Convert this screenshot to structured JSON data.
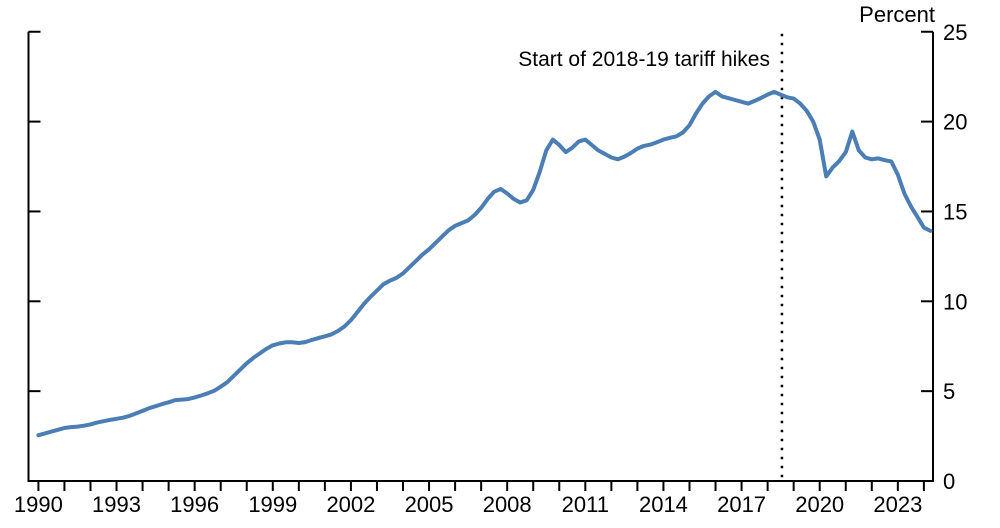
{
  "chart_data": {
    "type": "line",
    "title": "",
    "ylabel": "Percent",
    "annotation": "Start of 2018-19 tariff hikes",
    "line_color": "#4a7eb5",
    "axis_color": "#000000",
    "grid": false,
    "legend": "none",
    "xlim": [
      1989.62,
      2024.35
    ],
    "ylim": [
      0,
      25
    ],
    "x_start": 1990.0,
    "x_step": 0.25,
    "values": [
      2.55,
      2.65,
      2.75,
      2.85,
      2.95,
      3.0,
      3.03,
      3.08,
      3.15,
      3.25,
      3.33,
      3.4,
      3.46,
      3.52,
      3.62,
      3.76,
      3.9,
      4.05,
      4.16,
      4.28,
      4.38,
      4.5,
      4.53,
      4.56,
      4.65,
      4.76,
      4.88,
      5.02,
      5.25,
      5.5,
      5.85,
      6.2,
      6.55,
      6.85,
      7.1,
      7.35,
      7.55,
      7.65,
      7.72,
      7.72,
      7.68,
      7.73,
      7.85,
      7.95,
      8.05,
      8.16,
      8.35,
      8.6,
      8.95,
      9.4,
      9.85,
      10.25,
      10.6,
      10.95,
      11.15,
      11.3,
      11.55,
      11.9,
      12.25,
      12.6,
      12.9,
      13.25,
      13.6,
      13.95,
      14.2,
      14.35,
      14.5,
      14.8,
      15.2,
      15.7,
      16.1,
      16.25,
      16.0,
      15.7,
      15.5,
      15.62,
      16.2,
      17.2,
      18.4,
      19.0,
      18.7,
      18.3,
      18.55,
      18.9,
      19.0,
      18.7,
      18.4,
      18.2,
      18.0,
      17.9,
      18.05,
      18.25,
      18.5,
      18.65,
      18.72,
      18.85,
      19.0,
      19.1,
      19.18,
      19.4,
      19.8,
      20.45,
      21.0,
      21.4,
      21.65,
      21.4,
      21.3,
      21.2,
      21.1,
      21.0,
      21.15,
      21.32,
      21.5,
      21.65,
      21.5,
      21.35,
      21.28,
      21.0,
      20.6,
      20.0,
      19.0,
      16.95,
      17.45,
      17.8,
      18.3,
      19.45,
      18.4,
      18.0,
      17.9,
      17.95,
      17.85,
      17.78,
      17.05,
      16.0,
      15.28,
      14.7,
      14.1,
      13.92
    ],
    "x_minor_ticks": [
      1990,
      1991,
      1992,
      1993,
      1994,
      1995,
      1996,
      1997,
      1998,
      1999,
      2000,
      2001,
      2002,
      2003,
      2004,
      2005,
      2006,
      2007,
      2008,
      2009,
      2010,
      2011,
      2012,
      2013,
      2014,
      2015,
      2016,
      2017,
      2018,
      2019,
      2020,
      2021,
      2022,
      2023,
      2024
    ],
    "x_tick_labels": [
      "1990",
      "1993",
      "1996",
      "1999",
      "2002",
      "2005",
      "2008",
      "2011",
      "2014",
      "2017",
      "2020",
      "2023"
    ],
    "y_tick_values": [
      5,
      10,
      15,
      20,
      25
    ],
    "y_axis_labels": [
      "0",
      "5",
      "10",
      "15",
      "20",
      "25"
    ],
    "vline": {
      "x": 2018.55,
      "style": "dotted",
      "color": "#000000"
    }
  }
}
